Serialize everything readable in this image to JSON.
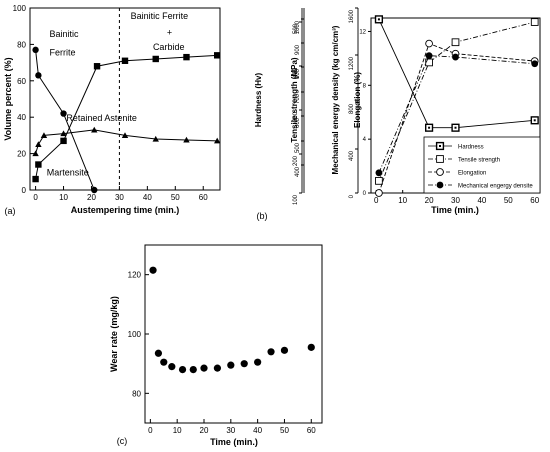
{
  "chart_data": [
    {
      "panel": "(a)",
      "type": "line",
      "xlabel": "Austempering time (min.)",
      "ylabel": "Volume percent (%)",
      "xlim": [
        -2,
        66
      ],
      "ylim": [
        0,
        100
      ],
      "xticks": [
        0,
        10,
        20,
        30,
        40,
        50,
        60
      ],
      "yticks": [
        0,
        20,
        40,
        60,
        80,
        100
      ],
      "divider_x": 30,
      "series": [
        {
          "name": "Bainitic Ferrite + Carbide",
          "marker": "square",
          "x": [
            0,
            1,
            10,
            22,
            32,
            43,
            54,
            65
          ],
          "y": [
            6,
            14,
            27,
            68,
            71,
            72,
            73,
            74
          ]
        },
        {
          "name": "Bainitic Ferrite",
          "marker": "circle",
          "x": [
            0,
            1,
            10,
            21
          ],
          "y": [
            77,
            63,
            42,
            0
          ]
        },
        {
          "name": "Retained Astenite",
          "marker": "triangle",
          "x": [
            0,
            1,
            3,
            10,
            21,
            32,
            43,
            54,
            65
          ],
          "y": [
            20,
            25,
            30,
            31,
            33,
            30,
            28,
            27.5,
            27
          ]
        }
      ],
      "annotations": [
        {
          "key": "bf",
          "text": "Bainitic",
          "x": 5,
          "y": 84
        },
        {
          "key": "bf2",
          "text": "Ferrite",
          "x": 5,
          "y": 74
        },
        {
          "key": "ra",
          "text": "Retained Astenite",
          "x": 11,
          "y": 38
        },
        {
          "key": "mart",
          "text": "Martensite",
          "x": 4,
          "y": 8
        },
        {
          "key": "bfc1",
          "text": "Bainitic Ferrite",
          "x": 34,
          "y": 94
        },
        {
          "key": "bfc2",
          "text": "+",
          "x": 47,
          "y": 85
        },
        {
          "key": "bfc3",
          "text": "Carbide",
          "x": 42,
          "y": 77
        }
      ]
    },
    {
      "panel": "(b)",
      "type": "line",
      "xlabel": "Time (min.)",
      "xlim": [
        -2,
        62
      ],
      "xticks": [
        0,
        10,
        20,
        30,
        40,
        50,
        60
      ],
      "axes": [
        {
          "label": "Hardness (Hv)",
          "ticks": [
            "500",
            "400",
            "300",
            "200",
            "100"
          ]
        },
        {
          "label": "Tensile strength (MPa)",
          "ticks": [
            "1000",
            "900",
            "800",
            "700",
            "600",
            "500",
            "400"
          ]
        },
        {
          "label": "Mechanical energy density (kg cm/cm³)",
          "ticks": [
            "1600",
            "1200",
            "800",
            "400",
            "0"
          ]
        },
        {
          "label": "Elongation (%)",
          "ticks": [
            "12",
            "8",
            "4",
            "0"
          ],
          "lim": [
            0,
            13
          ]
        }
      ],
      "legend": {
        "position": "bottom-right",
        "entries": [
          "Hardness",
          "Tensile strength",
          "Elongation",
          "Mechanical engergy densite"
        ]
      },
      "series": [
        {
          "name": "Hardness",
          "marker": "square-dot",
          "style": "solid",
          "x": [
            1,
            20,
            30,
            60
          ],
          "y": [
            12.9,
            4.85,
            4.85,
            5.4
          ]
        },
        {
          "name": "Tensile strength",
          "marker": "square-open",
          "style": "dash-dot",
          "x": [
            1,
            20,
            30,
            60
          ],
          "y": [
            0.9,
            9.7,
            11.2,
            12.7
          ]
        },
        {
          "name": "Elongation",
          "marker": "circle-open",
          "style": "dashed",
          "x": [
            1,
            20,
            30,
            60
          ],
          "y": [
            0,
            11.1,
            10.35,
            9.8
          ]
        },
        {
          "name": "Mechanical engergy densite",
          "marker": "circle-filled",
          "style": "dash-dot",
          "x": [
            1,
            20,
            30,
            60
          ],
          "y": [
            1.5,
            10.2,
            10.1,
            9.6
          ]
        }
      ]
    },
    {
      "panel": "(c)",
      "type": "scatter",
      "xlabel": "Time (min.)",
      "ylabel": "Wear rate (mg/kg)",
      "xlim": [
        -2,
        64
      ],
      "ylim": [
        70,
        130
      ],
      "xticks": [
        0,
        10,
        20,
        30,
        40,
        50,
        60
      ],
      "yticks": [
        80,
        100,
        120
      ],
      "series": [
        {
          "marker": "circle",
          "x": [
            1,
            3,
            5,
            8,
            12,
            16,
            20,
            25,
            30,
            35,
            40,
            45,
            50,
            60
          ],
          "y": [
            121.5,
            93.5,
            90.5,
            89,
            88,
            88,
            88.5,
            88.5,
            89.5,
            90,
            90.5,
            94,
            94.5,
            95.5
          ]
        }
      ]
    }
  ]
}
